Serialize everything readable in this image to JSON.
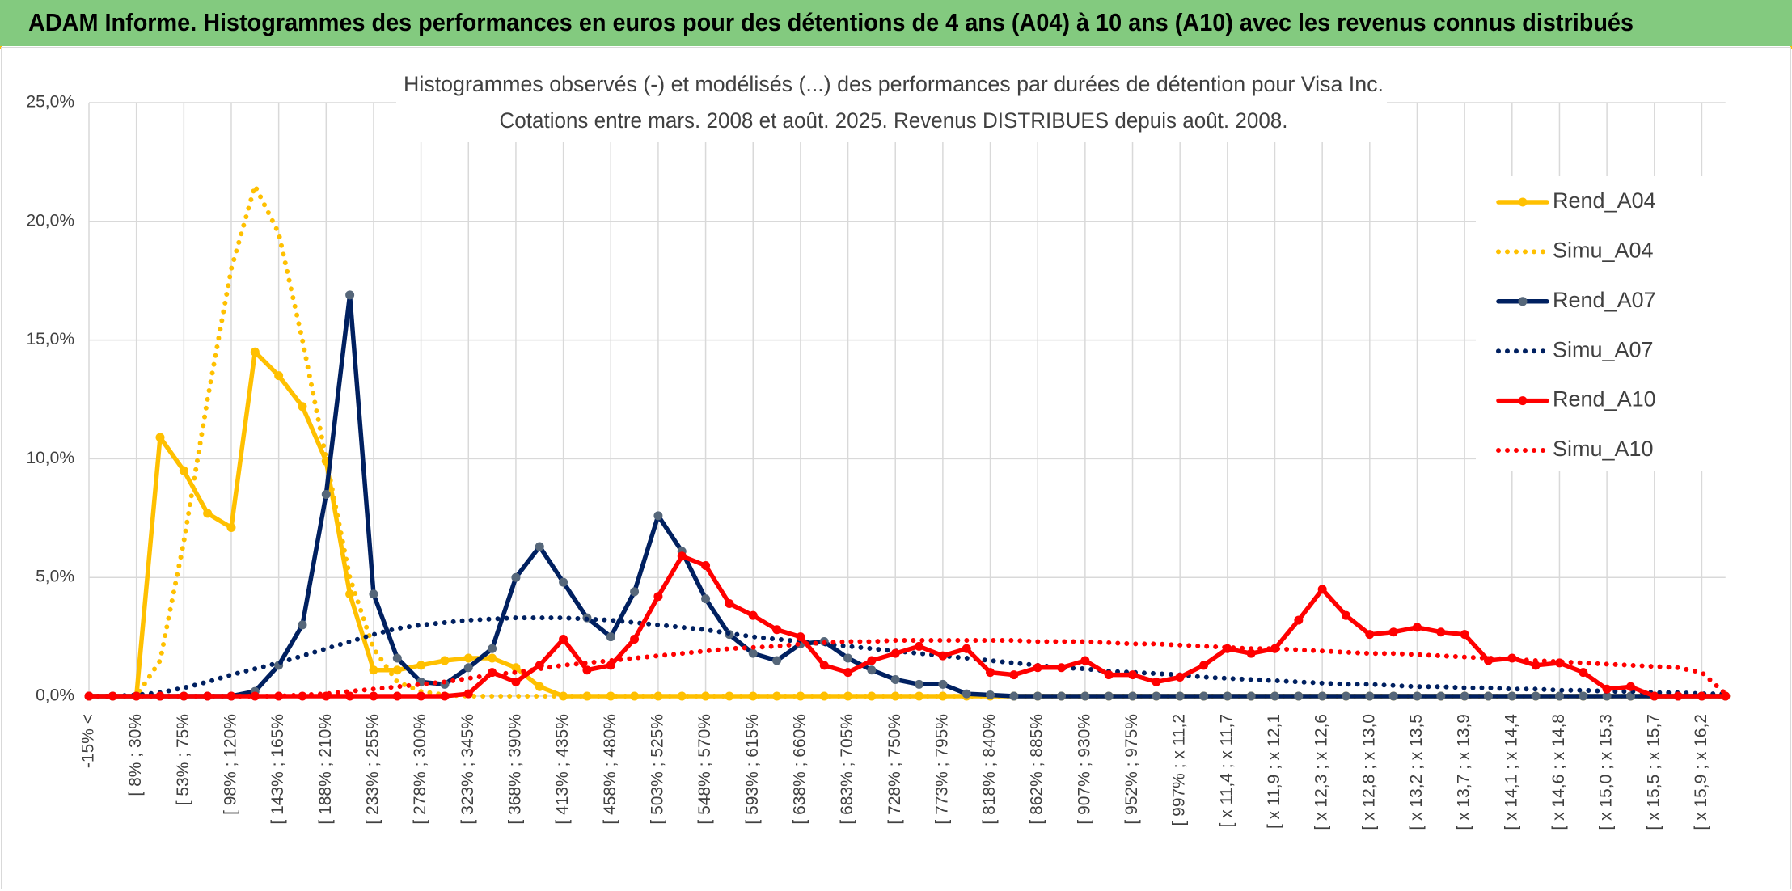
{
  "header": {
    "title": "ADAM Informe. Histogrammes des performances en euros pour des détentions de 4 ans (A04) à 10 ans (A10) avec les revenus connus distribués"
  },
  "chart_data": {
    "type": "line",
    "title": "Histogrammes observés (-) et modélisés (...) des performances par durées de détention pour Visa Inc.",
    "subtitle": "Cotations entre mars. 2008 et août. 2025. Revenus DISTRIBUES depuis août. 2008.",
    "categories": [
      "-15% <",
      null,
      "[ 8% ; 30%",
      null,
      "[ 53% ; 75%",
      null,
      "[ 98% ; 120%",
      null,
      "[ 143% ; 165%",
      null,
      "[ 188% ; 210%",
      null,
      "[ 233% ; 255%",
      null,
      "[ 278% ; 300%",
      null,
      "[ 323% ; 345%",
      null,
      "[ 368% ; 390%",
      null,
      "[ 413% ; 435%",
      null,
      "[ 458% ; 480%",
      null,
      "[ 503% ; 525%",
      null,
      "[ 548% ; 570%",
      null,
      "[ 593% ; 615%",
      null,
      "[ 638% ; 660%",
      null,
      "[ 683% ; 705%",
      null,
      "[ 728% ; 750%",
      null,
      "[ 773% ; 795%",
      null,
      "[ 818% ; 840%",
      null,
      "[ 862% ; 885%",
      null,
      "[ 907% ; 930%",
      null,
      "[ 952% ; 975%",
      null,
      "[ 997% ; x 11,2",
      null,
      "[ x 11,4 ; x 11,7",
      null,
      "[ x 11,9 ; x 12,1",
      null,
      "[ x 12,3 ; x 12,6",
      null,
      "[ x 12,8 ; x 13,0",
      null,
      "[ x 13,2 ; x 13,5",
      null,
      "[ x 13,7 ; x 13,9",
      null,
      "[ x 14,1 ; x 14,4",
      null,
      "[ x 14,6 ; x 14,8",
      null,
      "[ x 15,0 ; x 15,3",
      null,
      "[ x 15,5 ; x 15,7",
      null,
      "[ x 15,9 ; x 16,2",
      null
    ],
    "series": [
      {
        "name": "Rend_A04",
        "color": "#ffc000",
        "style": "solid",
        "markers": true,
        "values": [
          0,
          0,
          0,
          10.9,
          9.5,
          7.7,
          7.1,
          14.5,
          13.5,
          12.2,
          9.9,
          4.3,
          1.1,
          1.1,
          1.3,
          1.5,
          1.6,
          1.6,
          1.2,
          0.4,
          0,
          0,
          0,
          0,
          0,
          0,
          0,
          0,
          0,
          0,
          0,
          0,
          0,
          0,
          0,
          0,
          0,
          0,
          0,
          0,
          0,
          0,
          0,
          0,
          0,
          0,
          0,
          0,
          0,
          0,
          0,
          0,
          0,
          0,
          0,
          0,
          0,
          0,
          0,
          0,
          0,
          0,
          0,
          0,
          0,
          0,
          0,
          0,
          0,
          0
        ]
      },
      {
        "name": "Simu_A04",
        "color": "#ffc000",
        "style": "dotted",
        "markers": false,
        "values": [
          0,
          0,
          0,
          1.5,
          6.5,
          12.5,
          18,
          21.5,
          19.5,
          15,
          10,
          5,
          2,
          0.6,
          0.2,
          0.05,
          0,
          0,
          0,
          0,
          0,
          0,
          0,
          0,
          0,
          0,
          0,
          0,
          0,
          0,
          0,
          0,
          0,
          0,
          0,
          0,
          0,
          0,
          0,
          0,
          0,
          0,
          0,
          0,
          0,
          0,
          0,
          0,
          0,
          0,
          0,
          0,
          0,
          0,
          0,
          0,
          0,
          0,
          0,
          0,
          0,
          0,
          0,
          0,
          0,
          0,
          0,
          0,
          0,
          0
        ]
      },
      {
        "name": "Rend_A07",
        "color": "#002060",
        "marker_color": "#56677a",
        "style": "solid",
        "markers": true,
        "values": [
          0,
          0,
          0,
          0,
          0,
          0,
          0,
          0.2,
          1.3,
          3.0,
          8.5,
          16.9,
          4.3,
          1.6,
          0.6,
          0.5,
          1.2,
          2.0,
          5.0,
          6.3,
          4.8,
          3.3,
          2.5,
          4.4,
          7.6,
          6.1,
          4.1,
          2.6,
          1.8,
          1.5,
          2.2,
          2.3,
          1.6,
          1.1,
          0.7,
          0.5,
          0.5,
          0.1,
          0.05,
          0,
          0,
          0,
          0,
          0,
          0,
          0,
          0,
          0,
          0,
          0,
          0,
          0,
          0,
          0,
          0,
          0,
          0,
          0,
          0,
          0,
          0,
          0,
          0,
          0,
          0,
          0,
          0,
          0,
          0,
          0
        ]
      },
      {
        "name": "Simu_A07",
        "color": "#002060",
        "style": "dotted",
        "markers": false,
        "values": [
          0,
          0,
          0.05,
          0.15,
          0.35,
          0.6,
          0.9,
          1.15,
          1.4,
          1.7,
          2.0,
          2.3,
          2.6,
          2.85,
          3.0,
          3.1,
          3.2,
          3.25,
          3.3,
          3.3,
          3.3,
          3.25,
          3.2,
          3.1,
          3.0,
          2.9,
          2.8,
          2.65,
          2.5,
          2.4,
          2.3,
          2.2,
          2.1,
          2.0,
          1.9,
          1.8,
          1.7,
          1.6,
          1.5,
          1.4,
          1.3,
          1.2,
          1.15,
          1.05,
          1.0,
          0.95,
          0.9,
          0.8,
          0.75,
          0.7,
          0.65,
          0.6,
          0.55,
          0.5,
          0.5,
          0.45,
          0.4,
          0.4,
          0.35,
          0.35,
          0.3,
          0.3,
          0.25,
          0.25,
          0.2,
          0.2,
          0.15,
          0.15,
          0.1,
          0.1
        ]
      },
      {
        "name": "Rend_A10",
        "color": "#ff0000",
        "style": "solid",
        "markers": true,
        "values": [
          0,
          0,
          0,
          0,
          0,
          0,
          0,
          0,
          0,
          0,
          0,
          0,
          0,
          0,
          0,
          0,
          0.1,
          1.0,
          0.6,
          1.3,
          2.4,
          1.1,
          1.3,
          2.4,
          4.2,
          5.9,
          5.5,
          3.9,
          3.4,
          2.8,
          2.5,
          1.3,
          1.0,
          1.5,
          1.8,
          2.1,
          1.7,
          2.0,
          1.0,
          0.9,
          1.2,
          1.2,
          1.5,
          0.9,
          0.9,
          0.6,
          0.8,
          1.3,
          2.0,
          1.8,
          2.0,
          3.2,
          4.5,
          3.4,
          2.6,
          2.7,
          2.9,
          2.7,
          2.6,
          1.5,
          1.6,
          1.3,
          1.4,
          1.0,
          0.3,
          0.4,
          0,
          0,
          0,
          0
        ]
      },
      {
        "name": "Simu_A10",
        "color": "#ff0000",
        "style": "dotted",
        "markers": false,
        "values": [
          0,
          0,
          0,
          0,
          0,
          0,
          0,
          0,
          0,
          0.05,
          0.1,
          0.2,
          0.3,
          0.4,
          0.5,
          0.6,
          0.75,
          0.9,
          1.0,
          1.15,
          1.3,
          1.4,
          1.5,
          1.6,
          1.7,
          1.8,
          1.9,
          2.0,
          2.05,
          2.1,
          2.2,
          2.25,
          2.3,
          2.3,
          2.35,
          2.35,
          2.35,
          2.35,
          2.35,
          2.35,
          2.3,
          2.3,
          2.3,
          2.25,
          2.2,
          2.2,
          2.15,
          2.1,
          2.05,
          2.0,
          2.0,
          1.95,
          1.9,
          1.85,
          1.8,
          1.8,
          1.75,
          1.7,
          1.65,
          1.6,
          1.55,
          1.5,
          1.45,
          1.4,
          1.35,
          1.3,
          1.25,
          1.2,
          1.0,
          0.1
        ]
      }
    ],
    "ylim": [
      0,
      25
    ],
    "yticks": [
      {
        "value": 0,
        "label": "0,0%"
      },
      {
        "value": 5,
        "label": "5,0%"
      },
      {
        "value": 10,
        "label": "10,0%"
      },
      {
        "value": 15,
        "label": "15,0%"
      },
      {
        "value": 20,
        "label": "20,0%"
      },
      {
        "value": 25,
        "label": "25,0%"
      }
    ],
    "grid": true,
    "legend": "right"
  }
}
